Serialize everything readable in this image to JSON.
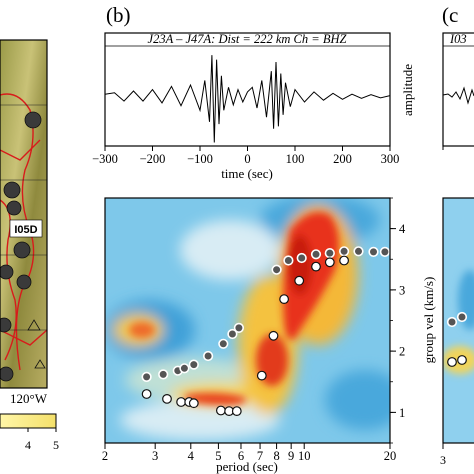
{
  "panels": {
    "b_label": "(b)",
    "c_label": "(c",
    "c_title_fragment": "I03"
  },
  "map_panel": {
    "station_label": "I05D",
    "longitude_label": "120°W",
    "colorbar_ticks": [
      "4",
      "5"
    ]
  },
  "chart_data": [
    {
      "type": "line",
      "title": "J23A – J47A: Dist = 222 km Ch = BHZ",
      "xlabel": "time (sec)",
      "ylabel": "amplitude",
      "xlim": [
        -300,
        300
      ],
      "xticks": [
        -300,
        -200,
        -100,
        0,
        100,
        200,
        300
      ],
      "series": [
        {
          "x": [
            -300,
            -280,
            -260,
            -240,
            -220,
            -200,
            -180,
            -160,
            -140,
            -120,
            -100,
            -90,
            -80,
            -75,
            -70,
            -65,
            -60,
            -55,
            -50,
            -40,
            -30,
            -20,
            -10,
            0,
            10,
            20,
            30,
            40,
            50,
            55,
            60,
            65,
            70,
            75,
            80,
            90,
            100,
            120,
            140,
            160,
            180,
            200,
            220,
            240,
            260,
            280,
            300
          ],
          "y": [
            0.05,
            0.08,
            -0.1,
            0.12,
            -0.1,
            0.15,
            -0.14,
            0.22,
            -0.2,
            0.25,
            -0.3,
            0.35,
            -0.55,
            0.9,
            -1.0,
            0.8,
            -0.6,
            0.45,
            -0.3,
            0.2,
            -0.18,
            0.15,
            -0.12,
            0.1,
            0.2,
            -0.25,
            0.35,
            -0.45,
            0.55,
            -0.7,
            0.75,
            -0.65,
            0.5,
            -0.4,
            0.3,
            -0.22,
            0.15,
            -0.12,
            0.1,
            -0.08,
            0.07,
            -0.06,
            0.05,
            -0.04,
            0.04,
            -0.03,
            0.02
          ]
        }
      ]
    },
    {
      "type": "heatmap",
      "xlabel": "period (sec)",
      "ylabel": "group vel (km/s)",
      "x_scale": "log",
      "xlim": [
        2,
        20
      ],
      "ylim": [
        0.5,
        4.5
      ],
      "xticks": [
        2,
        3,
        4,
        5,
        6,
        7,
        8,
        9,
        10,
        20
      ],
      "yticks": [
        1,
        2,
        3,
        4
      ],
      "series": [
        {
          "marker": "gray-dot",
          "x": [
            2.8,
            3.2,
            3.6,
            3.8,
            4.1,
            4.6,
            5.2,
            5.6,
            5.9,
            8.0,
            8.8,
            9.8,
            11.0,
            12.3,
            13.8,
            15.5,
            17.5,
            19.2
          ],
          "y": [
            1.58,
            1.62,
            1.68,
            1.72,
            1.78,
            1.92,
            2.12,
            2.28,
            2.38,
            3.33,
            3.48,
            3.52,
            3.58,
            3.6,
            3.63,
            3.63,
            3.62,
            3.62
          ]
        },
        {
          "marker": "white-dot",
          "x": [
            2.8,
            3.3,
            3.7,
            3.95,
            4.1,
            5.1,
            5.45,
            5.8,
            7.1,
            7.8,
            8.5,
            9.6,
            11.0,
            12.3,
            13.8
          ],
          "y": [
            1.3,
            1.22,
            1.17,
            1.17,
            1.15,
            1.03,
            1.02,
            1.02,
            1.6,
            2.25,
            2.85,
            3.15,
            3.38,
            3.45,
            3.48
          ]
        }
      ]
    }
  ]
}
